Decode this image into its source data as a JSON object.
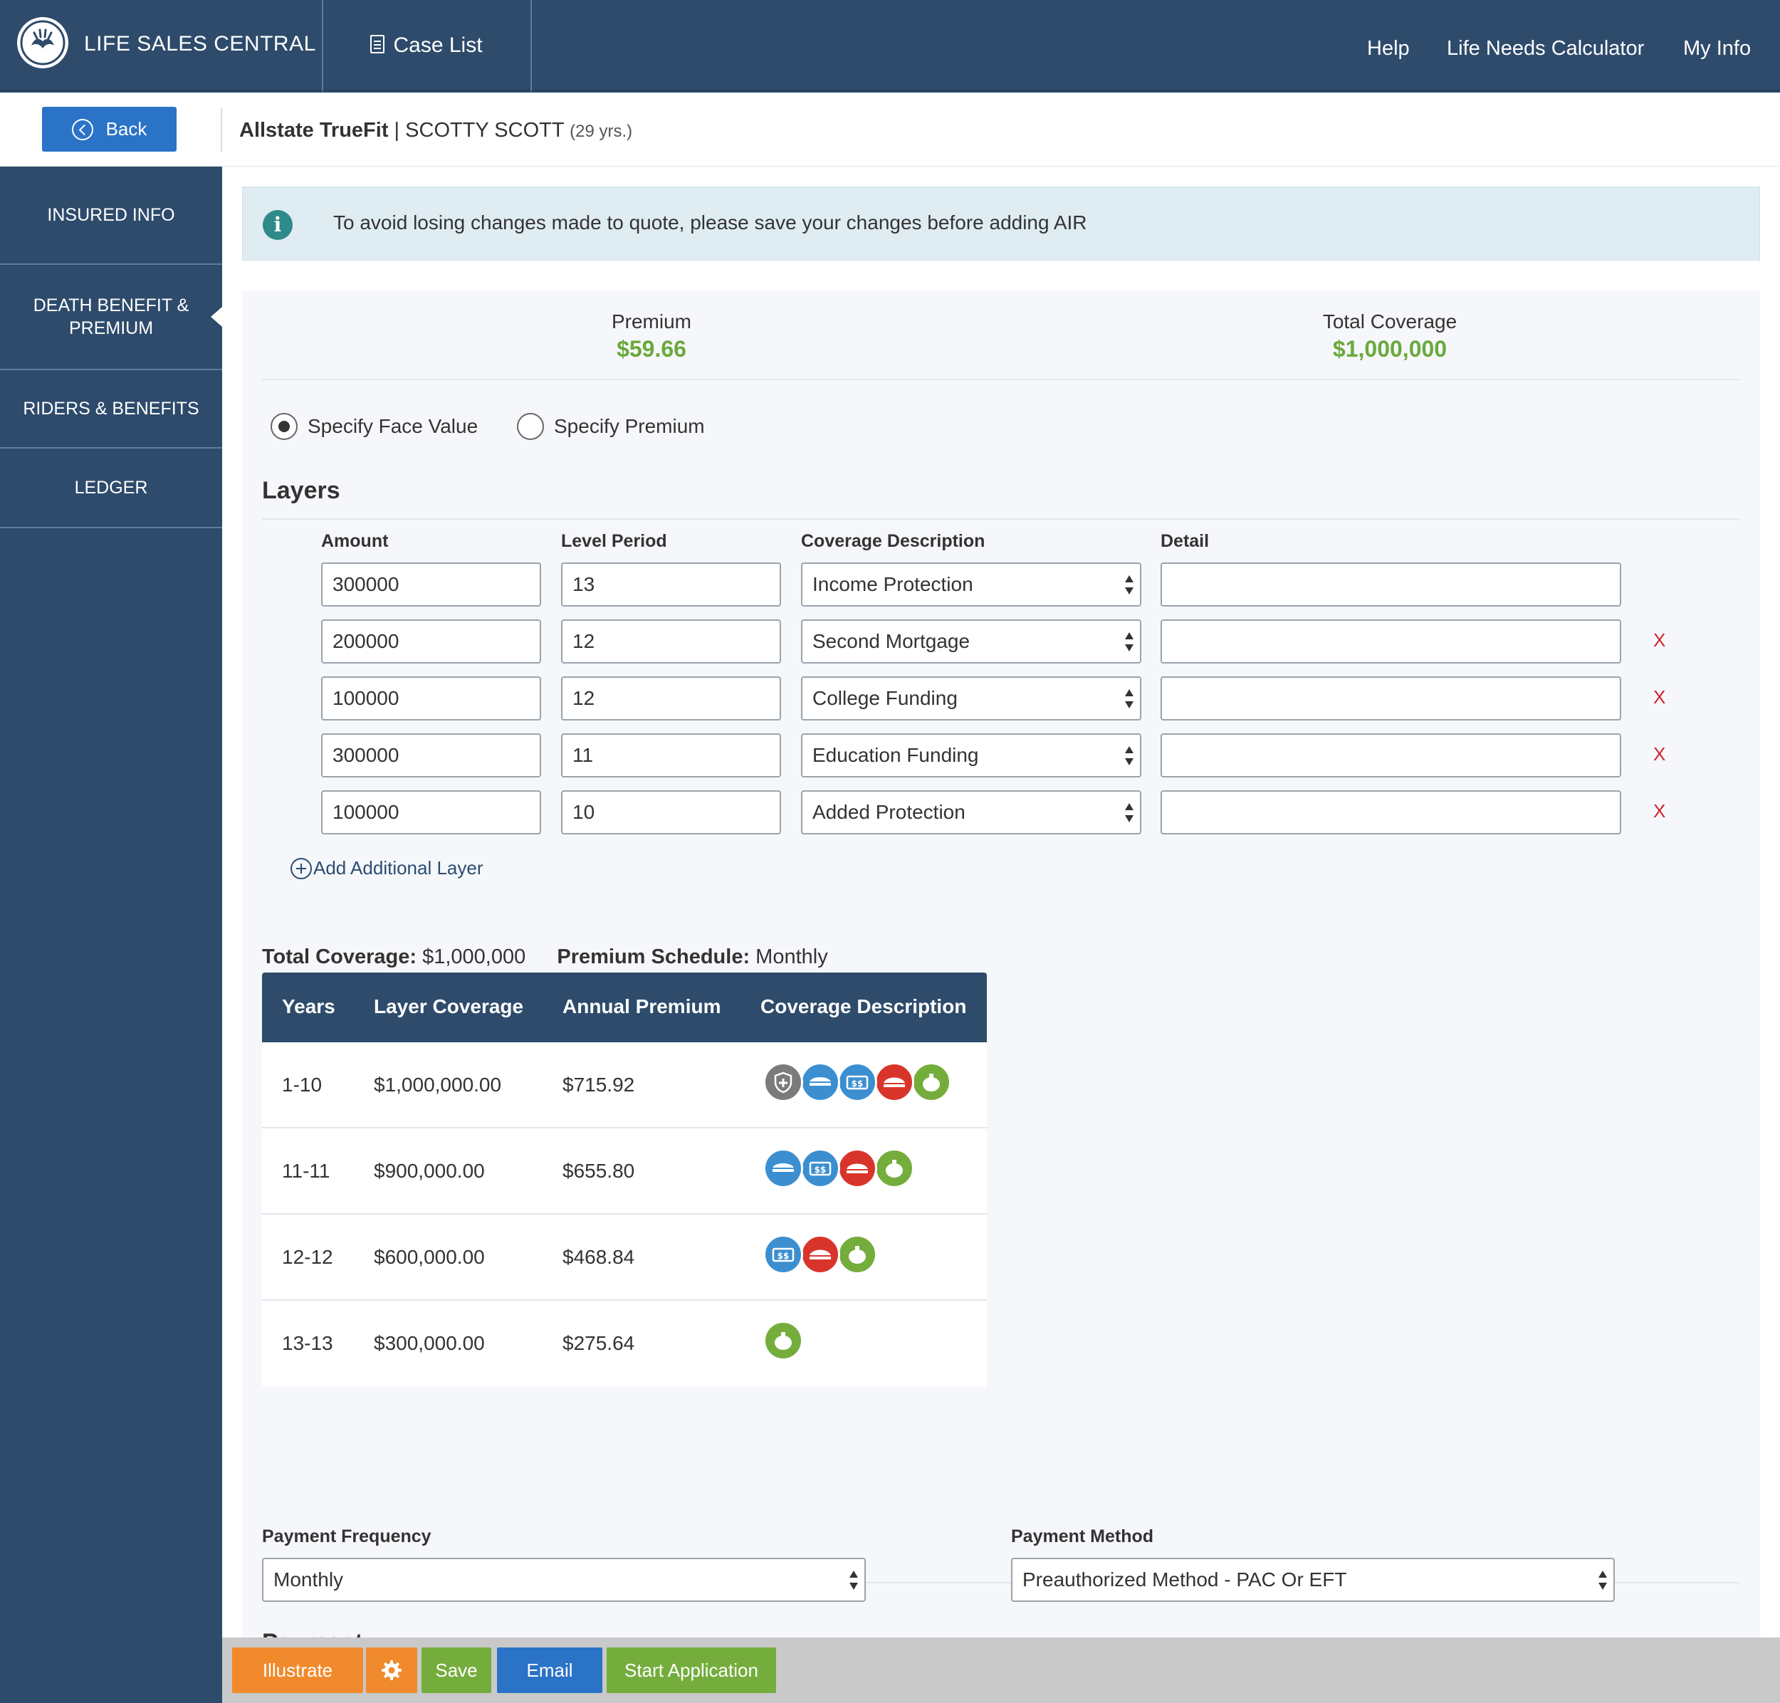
{
  "app": {
    "brand": "LIFE SALES CENTRAL",
    "case_list": "Case List",
    "nav": [
      "Help",
      "Life Needs Calculator",
      "My Info"
    ]
  },
  "subheader": {
    "back": "Back",
    "product": "Allstate TrueFit",
    "separator": " | ",
    "client": "SCOTTY SCOTT",
    "age": "(29 yrs.)"
  },
  "sidebar": {
    "items": [
      {
        "label": "INSURED INFO"
      },
      {
        "label": "DEATH BENEFIT & PREMIUM",
        "active": true
      },
      {
        "label": "RIDERS & BENEFITS"
      },
      {
        "label": "LEDGER"
      }
    ]
  },
  "info": {
    "message": "To avoid losing changes made to quote, please save your changes before adding AIR"
  },
  "summary": {
    "premium_label": "Premium",
    "premium_value": "$59.66",
    "coverage_label": "Total Coverage",
    "coverage_value": "$1,000,000"
  },
  "mode": {
    "options": [
      "Specify Face Value",
      "Specify Premium"
    ],
    "selected": "Specify Face Value"
  },
  "layers": {
    "title": "Layers",
    "headers": {
      "amount": "Amount",
      "period": "Level Period",
      "description": "Coverage Description",
      "detail": "Detail"
    },
    "rows": [
      {
        "amount": "300000",
        "period": "13",
        "description": "Income Protection",
        "detail": "",
        "removable": false
      },
      {
        "amount": "200000",
        "period": "12",
        "description": "Second Mortgage",
        "detail": "",
        "removable": true
      },
      {
        "amount": "100000",
        "period": "12",
        "description": "College Funding",
        "detail": "",
        "removable": true
      },
      {
        "amount": "300000",
        "period": "11",
        "description": "Education Funding",
        "detail": "",
        "removable": true
      },
      {
        "amount": "100000",
        "period": "10",
        "description": "Added Protection",
        "detail": "",
        "removable": true
      }
    ],
    "remove_label": "X",
    "add_label": "Add Additional Layer"
  },
  "schedule": {
    "total_label": "Total Coverage:",
    "total_value": "$1,000,000",
    "premium_schedule_label": "Premium Schedule:",
    "premium_schedule_value": "Monthly",
    "headers": [
      "Years",
      "Layer Coverage",
      "Annual Premium",
      "Coverage Description"
    ],
    "rows": [
      {
        "years": "1-10",
        "coverage": "$1,000,000.00",
        "premium": "$715.92",
        "icons": [
          "shield-plus",
          "graduation-cap",
          "dollar",
          "home",
          "piggy-bank"
        ]
      },
      {
        "years": "11-11",
        "coverage": "$900,000.00",
        "premium": "$655.80",
        "icons": [
          "graduation-cap",
          "dollar",
          "home",
          "piggy-bank"
        ]
      },
      {
        "years": "12-12",
        "coverage": "$600,000.00",
        "premium": "$468.84",
        "icons": [
          "dollar",
          "home",
          "piggy-bank"
        ]
      },
      {
        "years": "13-13",
        "coverage": "$300,000.00",
        "premium": "$275.64",
        "icons": [
          "piggy-bank"
        ]
      }
    ],
    "icon_colors": {
      "shield-plus": "#7b7b7b",
      "graduation-cap": "#3b8fd1",
      "dollar": "#3b8fd1",
      "home": "#d9342b",
      "piggy-bank": "#74ad3c"
    }
  },
  "payment": {
    "title": "Payment",
    "frequency_label": "Payment Frequency",
    "frequency_value": "Monthly",
    "method_label": "Payment Method",
    "method_value": "Preauthorized Method - PAC Or EFT"
  },
  "actions": {
    "illustrate": "Illustrate",
    "save": "Save",
    "email": "Email",
    "start_application": "Start Application"
  },
  "colors": {
    "navy": "#2e4b6b",
    "accent_green": "#6aa93b",
    "illustrate_orange": "#f08a2c",
    "save_green": "#74ad3c",
    "email_blue": "#2a73c7",
    "remove_red": "#d0232a"
  }
}
